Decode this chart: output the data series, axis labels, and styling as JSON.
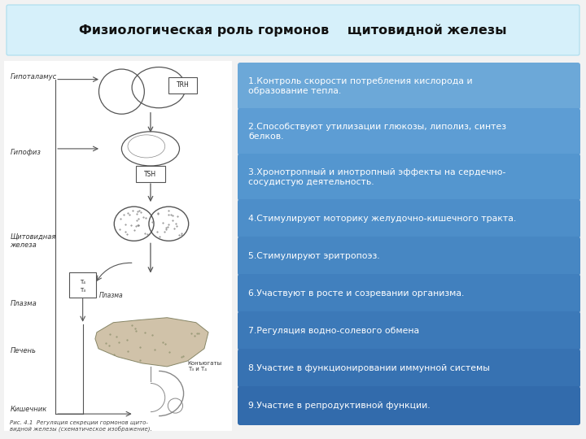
{
  "title": "Физиологическая роль гормонов    щитовидной железы",
  "title_bg": "#d6f0fa",
  "title_fontsize": 11.5,
  "bg_color": "#f2f2f2",
  "items": [
    "1.Контроль скорости потребления кислорода и\nобразование тепла.",
    "2.Способствуют утилизации глюкозы, липолиз, синтез\nбелков.",
    "3.Хронотропный и инотропный эффекты на сердечно-\nсосудистую деятельность.",
    "4.Стимулируют моторику желудочно-кишечного тракта.",
    "5.Стимулируют эритропоэз.",
    "6.Участвуют в росте и созревании организма.",
    "7.Регуляция водно-солевого обмена",
    "8.Участие в функционировании иммунной системы",
    "9.Участие в репродуктивной функции."
  ],
  "box_fill_colors": [
    "#6ca8d8",
    "#5d9dd4",
    "#5496cf",
    "#4d8ec9",
    "#4787c3",
    "#4180be",
    "#3c79b8",
    "#3772b2",
    "#326bac"
  ],
  "text_color": "#ffffff",
  "figure_caption": "Рис. 4.1  Регуляция секреции гормонов щито-\nвидной железы (схематическое изображение).",
  "font_size_items": 7.8,
  "font_size_labels": 6.5
}
